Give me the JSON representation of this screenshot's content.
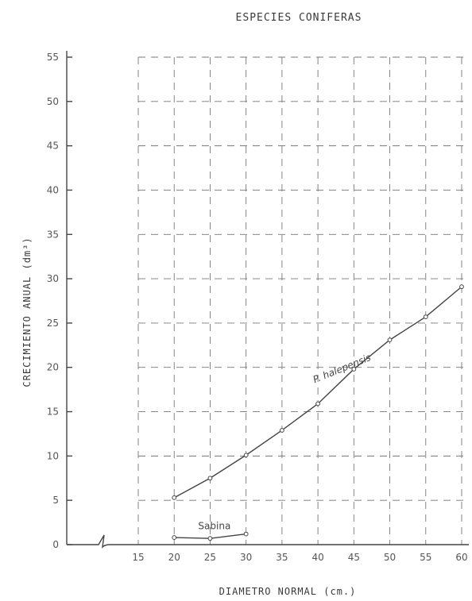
{
  "chart_data": {
    "type": "line",
    "title": "ESPECIES CONIFERAS",
    "xlabel": "DIAMETRO NORMAL (cm.)",
    "ylabel": "CRECIMIENTO ANUAL (dm³)",
    "xlim": [
      15,
      60
    ],
    "ylim": [
      0,
      55
    ],
    "xticks": [
      15,
      20,
      25,
      30,
      35,
      40,
      45,
      50,
      55,
      60
    ],
    "yticks": [
      0,
      5,
      10,
      15,
      20,
      25,
      30,
      35,
      40,
      45,
      50,
      55
    ],
    "x_tick_labels": [
      "15",
      "20",
      "25",
      "30",
      "35",
      "40",
      "45",
      "50",
      "55",
      "60"
    ],
    "y_tick_labels": [
      "0",
      "5",
      "10",
      "15",
      "20",
      "25",
      "30",
      "35",
      "40",
      "45",
      "50",
      "55"
    ],
    "x_axis_break": true,
    "grid": true,
    "legend": "none",
    "colors": {
      "ink": "#444444",
      "grid": "#777777"
    },
    "series": [
      {
        "name": "P. halepensis",
        "x": [
          20,
          25,
          30,
          35,
          40,
          45,
          50,
          55,
          60
        ],
        "y": [
          5.3,
          7.5,
          10.1,
          12.9,
          15.9,
          19.8,
          23.1,
          25.7,
          29.1
        ]
      },
      {
        "name": "Sabina",
        "x": [
          20,
          25,
          30
        ],
        "y": [
          0.8,
          0.7,
          1.2
        ]
      }
    ]
  }
}
